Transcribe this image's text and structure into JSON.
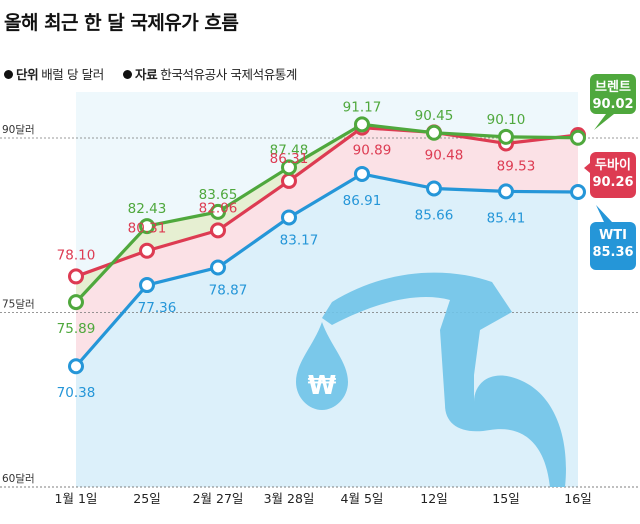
{
  "title": "올해 최근 한 달 국제유가 흐름",
  "unit": {
    "label": "단위",
    "text": "배럴 당 달러"
  },
  "source": {
    "label": "자료",
    "text": "한국석유공사 국제석유통계"
  },
  "chart_data": {
    "type": "line",
    "categories": [
      "1월 1일",
      "25일",
      "2월 27일",
      "3월 28일",
      "4월 5일",
      "12일",
      "15일",
      "16일"
    ],
    "y_ticks": [
      {
        "value": 90,
        "label": "90달러"
      },
      {
        "value": 75,
        "label": "75달러"
      },
      {
        "value": 60,
        "label": "60달러"
      }
    ],
    "ylim": [
      60,
      96
    ],
    "series": [
      {
        "name": "브렌트",
        "color": "#4fa83d",
        "values": [
          75.89,
          82.43,
          83.65,
          87.48,
          91.17,
          90.45,
          90.1,
          90.02
        ],
        "labels": [
          "75.89",
          "82.43",
          "83.65",
          "87.48",
          "91.17",
          "90.45",
          "90.10",
          ""
        ],
        "end_label": "90.02"
      },
      {
        "name": "두바이",
        "color": "#dd3b52",
        "values": [
          78.1,
          80.31,
          82.06,
          86.31,
          90.89,
          90.48,
          89.53,
          90.26
        ],
        "labels": [
          "78.10",
          "80.31",
          "82.06",
          "86.31",
          "90.89",
          "90.48",
          "89.53",
          ""
        ],
        "end_label": "90.26"
      },
      {
        "name": "WTI",
        "color": "#2596d8",
        "values": [
          70.38,
          77.36,
          78.87,
          83.17,
          86.91,
          85.66,
          85.41,
          85.36
        ],
        "labels": [
          "70.38",
          "77.36",
          "78.87",
          "83.17",
          "86.91",
          "85.66",
          "85.41",
          ""
        ],
        "end_label": "85.36"
      }
    ],
    "colors": {
      "brent_fill": "#e6efd2",
      "dubai_fill": "#fbe1e6",
      "wti_fill": "#dcf0fa"
    },
    "decoration": {
      "icon": "fuel-nozzle-icon",
      "symbol": "₩"
    }
  }
}
